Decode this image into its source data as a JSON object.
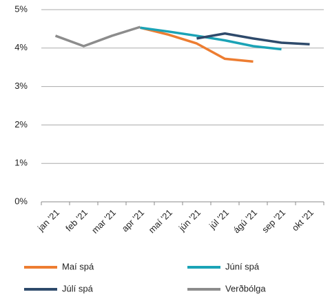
{
  "chart_data": {
    "type": "line",
    "categories": [
      "jan '21",
      "feb '21",
      "mar '21",
      "apr '21",
      "maí '21",
      "jún '21",
      "júl '21",
      "ágú '21",
      "sep '21",
      "okt '21"
    ],
    "series": [
      {
        "name": "Maí spá",
        "color": "#ed7d31",
        "values": [
          null,
          null,
          null,
          4.53,
          4.35,
          4.12,
          3.72,
          3.65,
          null,
          null
        ]
      },
      {
        "name": "Júní spá",
        "color": "#1ba3b6",
        "values": [
          null,
          null,
          null,
          4.53,
          4.43,
          4.32,
          4.2,
          4.05,
          3.97,
          null
        ]
      },
      {
        "name": "Júlí spá",
        "color": "#2e4a6b",
        "values": [
          null,
          null,
          null,
          null,
          null,
          4.25,
          4.38,
          4.25,
          4.14,
          4.1
        ]
      },
      {
        "name": "Verðbólga",
        "color": "#8c8c8c",
        "values": [
          4.32,
          4.05,
          4.32,
          4.55,
          null,
          null,
          null,
          null,
          null,
          null
        ]
      }
    ],
    "ylim": [
      0,
      5
    ],
    "yticks": [
      {
        "value": 0,
        "label": "0%"
      },
      {
        "value": 1,
        "label": "1%"
      },
      {
        "value": 2,
        "label": "2%"
      },
      {
        "value": 3,
        "label": "3%"
      },
      {
        "value": 4,
        "label": "4%"
      },
      {
        "value": 5,
        "label": "5%"
      }
    ],
    "grid": true
  }
}
